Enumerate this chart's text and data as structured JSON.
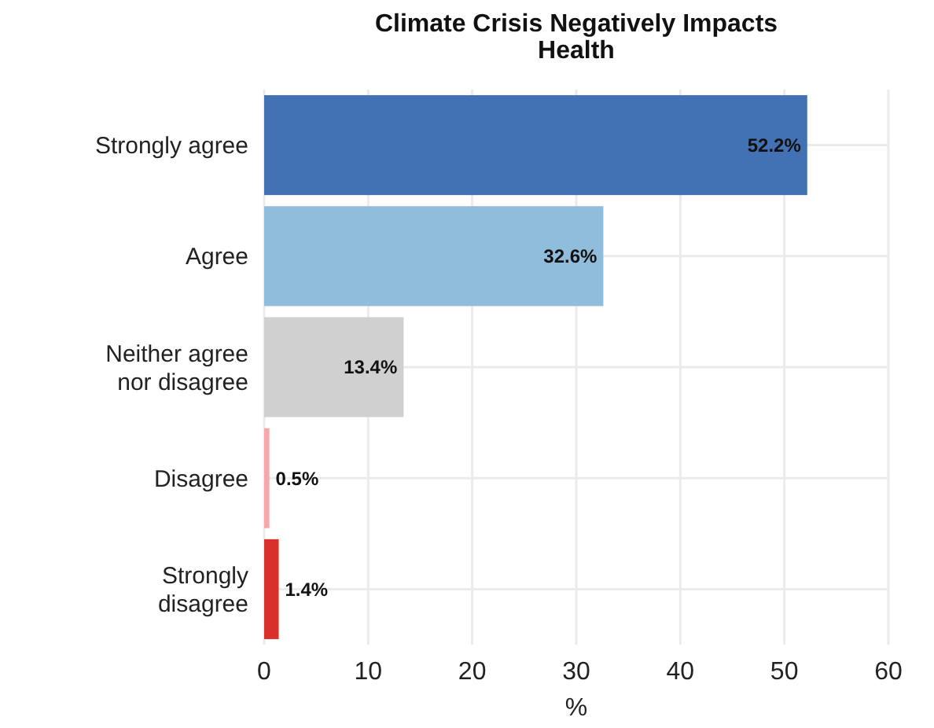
{
  "chart_data": {
    "type": "bar",
    "orientation": "horizontal",
    "title": "Climate Crisis Negatively Impacts\nHealth",
    "xlabel": "%",
    "categories": [
      "Strongly agree",
      "Agree",
      "Neither agree\nnor disagree",
      "Disagree",
      "Strongly\ndisagree"
    ],
    "values": [
      52.2,
      32.6,
      13.4,
      0.5,
      1.4
    ],
    "colors": [
      "#4372b4",
      "#91bddc",
      "#d0d0d0",
      "#f6a7aa",
      "#d9302c"
    ],
    "value_labels": [
      "52.2%",
      "32.6%",
      "13.4%",
      "0.5%",
      "1.4%"
    ],
    "xlim": [
      0,
      60
    ],
    "xticks": [
      0,
      10,
      20,
      30,
      40,
      50,
      60
    ],
    "grid": true
  }
}
